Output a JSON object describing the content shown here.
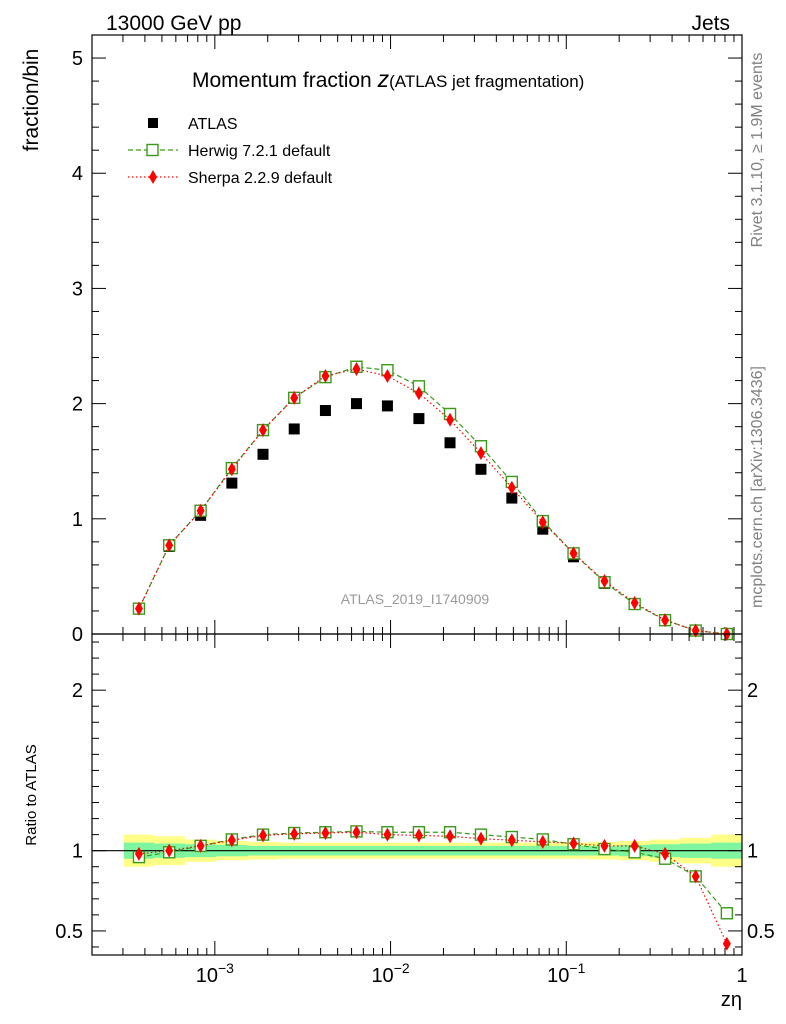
{
  "header": {
    "left": "13000 GeV pp",
    "right": "Jets"
  },
  "side_labels": {
    "rivet": "Rivet 3.1.10, ≥ 1.9M events",
    "mcplots": "mcplots.cern.ch [arXiv:1306.3436]"
  },
  "colors": {
    "atlas": "#000000",
    "herwig": "#3a9a1a",
    "sherpa": "#ff0000",
    "band_inner": "#7ff5a0",
    "band_outer": "#ffff88"
  },
  "chart_data": [
    {
      "type": "scatter",
      "panel": "main",
      "title_main": "Momentum fraction ",
      "title_z": "z",
      "title_paren": "(ATLAS jet fragmentation)",
      "watermark": "ATLAS_2019_I1740909",
      "ylabel": "fraction/bin",
      "xscale": "log",
      "xlim": [
        0.0002,
        1
      ],
      "ylim": [
        0,
        5.2
      ],
      "yticks": [
        0,
        1,
        2,
        3,
        4,
        5
      ],
      "ytick_labels": [
        "0",
        "1",
        "2",
        "3",
        "4",
        "5"
      ],
      "legend_position": "top-left",
      "x": [
        0.00037,
        0.00055,
        0.00083,
        0.00125,
        0.00188,
        0.00283,
        0.00426,
        0.0064,
        0.0096,
        0.0145,
        0.0218,
        0.0327,
        0.049,
        0.0735,
        0.11,
        0.165,
        0.245,
        0.365,
        0.545,
        0.82
      ],
      "series": [
        {
          "name": "ATLAS",
          "marker": "square-filled",
          "values": [
            0.22,
            0.76,
            1.03,
            1.31,
            1.56,
            1.78,
            1.94,
            2.0,
            1.98,
            1.87,
            1.66,
            1.43,
            1.18,
            0.91,
            0.67,
            0.44,
            0.26,
            0.12,
            0.03,
            0.0
          ]
        },
        {
          "name": "Herwig 7.2.1 default",
          "marker": "square-open",
          "line": "dashed",
          "values": [
            0.22,
            0.77,
            1.07,
            1.44,
            1.77,
            2.05,
            2.23,
            2.32,
            2.29,
            2.15,
            1.91,
            1.63,
            1.32,
            0.98,
            0.7,
            0.45,
            0.26,
            0.12,
            0.03,
            0.0
          ]
        },
        {
          "name": "Sherpa 2.2.9 default",
          "marker": "diamond-filled",
          "line": "dotted",
          "values": [
            0.22,
            0.77,
            1.07,
            1.43,
            1.77,
            2.05,
            2.24,
            2.3,
            2.24,
            2.09,
            1.86,
            1.57,
            1.27,
            0.97,
            0.7,
            0.46,
            0.27,
            0.12,
            0.03,
            0.0
          ]
        }
      ]
    },
    {
      "type": "scatter",
      "panel": "ratio",
      "ylabel": "Ratio to ATLAS",
      "xlabel": "zη",
      "xscale": "log",
      "xlim": [
        0.0002,
        1
      ],
      "ylim": [
        0.35,
        2.35
      ],
      "yticks": [
        0.5,
        1,
        2
      ],
      "ytick_labels": [
        "0.5",
        "1",
        "2"
      ],
      "xticks": [
        0.001,
        0.01,
        0.1,
        1
      ],
      "xtick_labels": [
        {
          "base": "10",
          "exp": "−3"
        },
        {
          "base": "10",
          "exp": "−2"
        },
        {
          "base": "10",
          "exp": "−1"
        },
        {
          "base": "1",
          "exp": ""
        }
      ],
      "x": [
        0.00037,
        0.00055,
        0.00083,
        0.00125,
        0.00188,
        0.00283,
        0.00426,
        0.0064,
        0.0096,
        0.0145,
        0.0218,
        0.0327,
        0.049,
        0.0735,
        0.11,
        0.165,
        0.245,
        0.365,
        0.545,
        0.82
      ],
      "band_inner": [
        0.05,
        0.045,
        0.04,
        0.035,
        0.03,
        0.03,
        0.03,
        0.03,
        0.03,
        0.03,
        0.03,
        0.03,
        0.03,
        0.03,
        0.03,
        0.03,
        0.035,
        0.04,
        0.045,
        0.05
      ],
      "band_outer": [
        0.1,
        0.09,
        0.07,
        0.06,
        0.055,
        0.05,
        0.05,
        0.05,
        0.05,
        0.05,
        0.05,
        0.05,
        0.05,
        0.05,
        0.05,
        0.055,
        0.06,
        0.07,
        0.08,
        0.1
      ],
      "series": [
        {
          "name": "Herwig 7.2.1 default",
          "marker": "square-open",
          "line": "dashed",
          "values": [
            0.96,
            0.99,
            1.03,
            1.07,
            1.1,
            1.11,
            1.115,
            1.12,
            1.115,
            1.115,
            1.115,
            1.1,
            1.085,
            1.07,
            1.04,
            1.01,
            0.99,
            0.95,
            0.84,
            0.61
          ]
        },
        {
          "name": "Sherpa 2.2.9 default",
          "marker": "diamond-filled",
          "line": "dotted",
          "values": [
            0.98,
            1.0,
            1.03,
            1.065,
            1.095,
            1.105,
            1.11,
            1.115,
            1.1,
            1.095,
            1.09,
            1.075,
            1.065,
            1.055,
            1.045,
            1.03,
            1.03,
            0.98,
            0.84,
            0.42
          ]
        }
      ]
    }
  ]
}
